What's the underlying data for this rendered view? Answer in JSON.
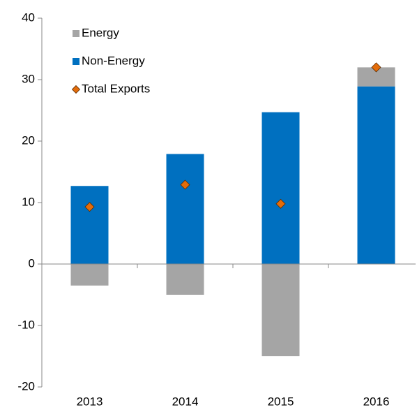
{
  "chart_data": {
    "type": "stacked_bar_with_markers",
    "categories": [
      "2013",
      "2014",
      "2015",
      "2016"
    ],
    "series": [
      {
        "name": "Energy",
        "color": "#a5a5a5",
        "values": [
          -3.5,
          -5.0,
          -15.0,
          3.1
        ],
        "kind": "bar"
      },
      {
        "name": "Non-Energy",
        "color": "#0070c0",
        "values": [
          12.7,
          17.9,
          24.7,
          28.9
        ],
        "kind": "bar"
      },
      {
        "name": "Total Exports",
        "color": "#e36c0a",
        "values": [
          9.3,
          12.9,
          9.8,
          32.0
        ],
        "kind": "marker"
      }
    ],
    "ylim": [
      -20,
      40
    ],
    "yticks": [
      -20,
      -10,
      0,
      10,
      20,
      30,
      40
    ]
  }
}
